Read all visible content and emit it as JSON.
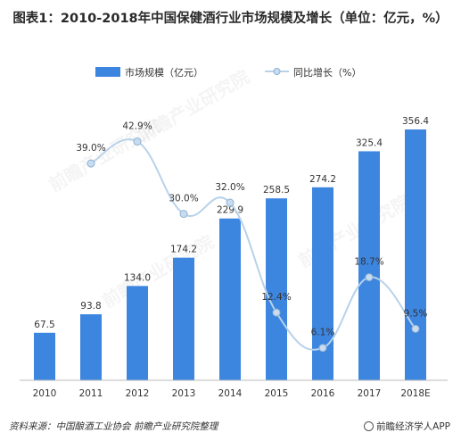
{
  "title": "图表1：2010-2018年中国保健酒行业市场规模及增长（单位：亿元，%）",
  "source": "资料来源：中国酿酒工业协会  前瞻产业研究院整理",
  "brand": "前瞻经济学人APP",
  "watermark": "前瞻产业研究院",
  "colors": {
    "bar": "#3d86e0",
    "line": "#b8d2ea",
    "marker": "#c9dcef",
    "marker_edge": "#8fb2d4"
  },
  "chart_data": {
    "type": "bar",
    "categories": [
      "2010",
      "2011",
      "2012",
      "2013",
      "2014",
      "2015",
      "2016",
      "2017",
      "2018E"
    ],
    "series": [
      {
        "name": "市场规模（亿元）",
        "type": "bar",
        "values": [
          67.5,
          93.8,
          134.0,
          174.2,
          229.9,
          258.5,
          274.2,
          325.4,
          356.4
        ],
        "labels": [
          "67.5",
          "93.8",
          "134.0",
          "174.2",
          "229.9",
          "258.5",
          "274.2",
          "325.4",
          "356.4"
        ]
      },
      {
        "name": "同比增长（%）",
        "type": "line",
        "smooth": true,
        "values": [
          null,
          39.0,
          42.9,
          30.0,
          32.0,
          12.4,
          6.1,
          18.7,
          9.5
        ],
        "labels": [
          "",
          "39.0%",
          "42.9%",
          "30.0%",
          "32.0%",
          "12.4%",
          "6.1%",
          "18.7%",
          "9.5%"
        ]
      }
    ],
    "legend_position": "top-center",
    "grid": false
  }
}
